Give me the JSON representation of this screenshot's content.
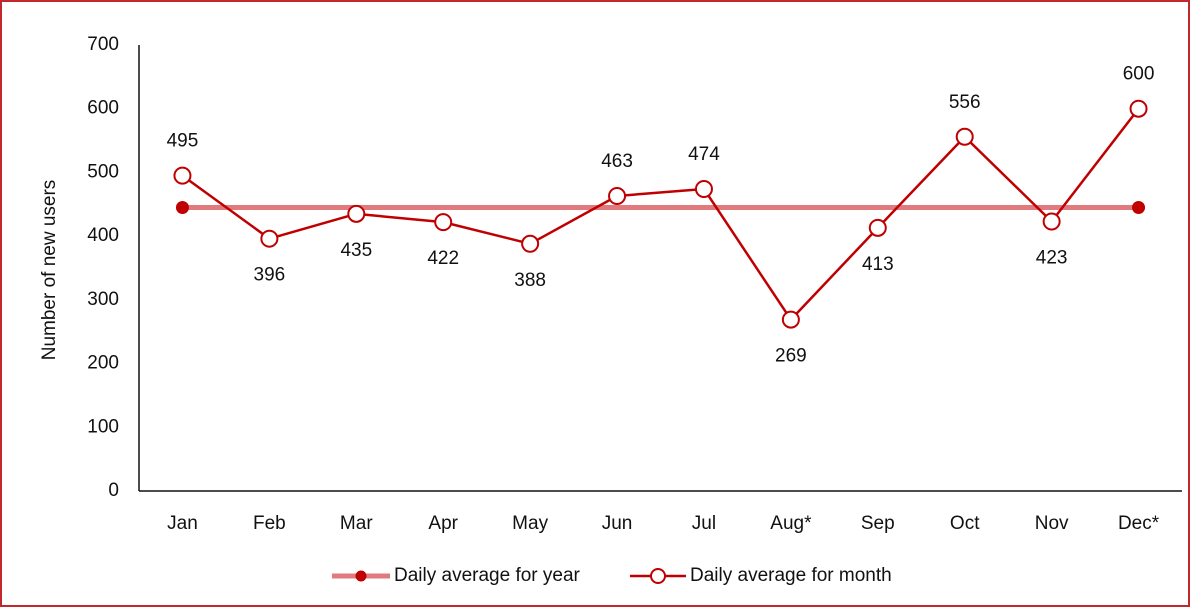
{
  "chart_data": {
    "type": "line",
    "y_label": "Number of new users",
    "categories": [
      "Jan",
      "Feb",
      "Mar",
      "Apr",
      "May",
      "Jun",
      "Jul",
      "Aug*",
      "Sep",
      "Oct",
      "Nov",
      "Dec*"
    ],
    "series": [
      {
        "name": "Daily average for year",
        "color": "#e07a7c",
        "marker_color": "#c00000",
        "values": [
          445,
          445,
          445,
          445,
          445,
          445,
          445,
          445,
          445,
          445,
          445,
          445
        ]
      },
      {
        "name": "Daily average for month",
        "color": "#c00000",
        "values": [
          495,
          396,
          435,
          422,
          388,
          463,
          474,
          269,
          413,
          556,
          423,
          600
        ]
      }
    ],
    "ylim": [
      0,
      700
    ],
    "yticks": [
      0,
      100,
      200,
      300,
      400,
      500,
      600,
      700
    ],
    "grid": false,
    "legend": "bottom"
  }
}
